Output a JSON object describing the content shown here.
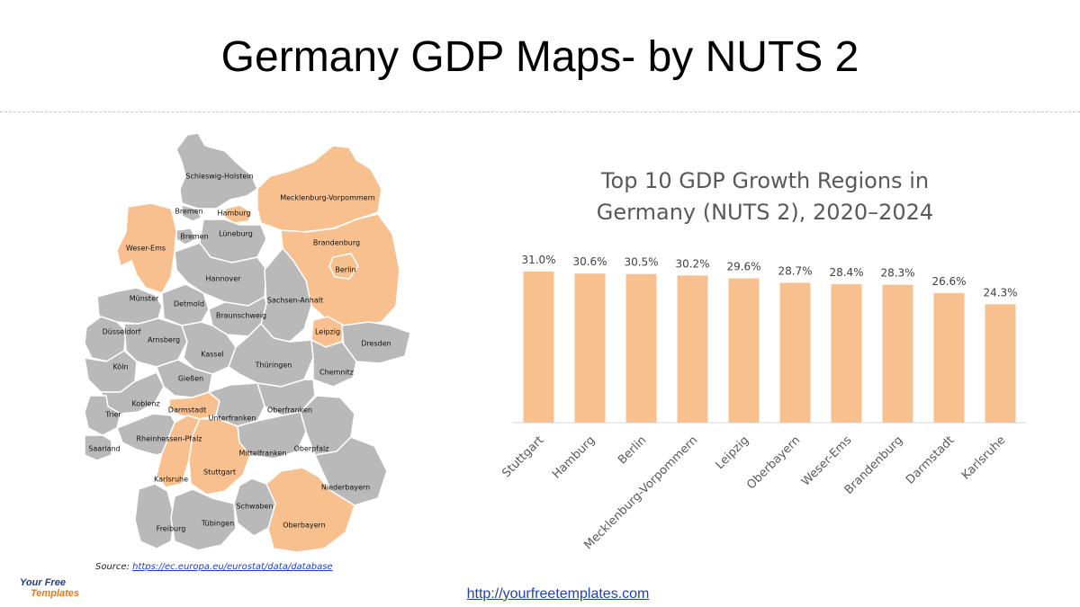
{
  "header": {
    "title": "Germany GDP Maps- by NUTS 2"
  },
  "colors": {
    "highlight": "#f9c08f",
    "base": "#b9b9b9",
    "bar": "#f9c08f",
    "border": "#ffffff"
  },
  "map": {
    "regions": [
      {
        "key": "sh",
        "name": "Schleswig-Holstein",
        "highlight": false
      },
      {
        "key": "mv",
        "name": "Mecklenburg-Vorpommern",
        "highlight": true
      },
      {
        "key": "hh",
        "name": "Hamburg",
        "highlight": true
      },
      {
        "key": "hb1",
        "name": "Bremen",
        "highlight": false
      },
      {
        "key": "hb2",
        "name": "Bremen",
        "highlight": false
      },
      {
        "key": "lu",
        "name": "Lüneburg",
        "highlight": false
      },
      {
        "key": "bb",
        "name": "Brandenburg",
        "highlight": true
      },
      {
        "key": "be",
        "name": "Berlin",
        "highlight": true
      },
      {
        "key": "we",
        "name": "Weser-Ems",
        "highlight": true
      },
      {
        "key": "ha",
        "name": "Hannover",
        "highlight": false
      },
      {
        "key": "ms",
        "name": "Münster",
        "highlight": false
      },
      {
        "key": "dt",
        "name": "Detmold",
        "highlight": false
      },
      {
        "key": "st",
        "name": "Sachsen-Anhalt",
        "highlight": false
      },
      {
        "key": "bs",
        "name": "Braunschweig",
        "highlight": false
      },
      {
        "key": "le",
        "name": "Leipzig",
        "highlight": true
      },
      {
        "key": "du",
        "name": "Düsseldorf",
        "highlight": false
      },
      {
        "key": "ar",
        "name": "Arnsberg",
        "highlight": false
      },
      {
        "key": "dd",
        "name": "Dresden",
        "highlight": false
      },
      {
        "key": "ka",
        "name": "Kassel",
        "highlight": false
      },
      {
        "key": "k",
        "name": "Köln",
        "highlight": false
      },
      {
        "key": "th",
        "name": "Thüringen",
        "highlight": false
      },
      {
        "key": "ch",
        "name": "Chemnitz",
        "highlight": false
      },
      {
        "key": "gi",
        "name": "Gießen",
        "highlight": false
      },
      {
        "key": "ko",
        "name": "Koblenz",
        "highlight": false
      },
      {
        "key": "da",
        "name": "Darmstadt",
        "highlight": true
      },
      {
        "key": "of",
        "name": "Oberfranken",
        "highlight": false
      },
      {
        "key": "tr",
        "name": "Trier",
        "highlight": false
      },
      {
        "key": "uf",
        "name": "Unterfranken",
        "highlight": false
      },
      {
        "key": "rp",
        "name": "Rheinhessen-Pfalz",
        "highlight": false
      },
      {
        "key": "sl",
        "name": "Saarland",
        "highlight": false
      },
      {
        "key": "mf",
        "name": "Mittelfranken",
        "highlight": false
      },
      {
        "key": "op",
        "name": "Oberpfalz",
        "highlight": false
      },
      {
        "key": "kr",
        "name": "Karlsruhe",
        "highlight": true
      },
      {
        "key": "sg",
        "name": "Stuttgart",
        "highlight": true
      },
      {
        "key": "nb",
        "name": "Niederbayern",
        "highlight": false
      },
      {
        "key": "sw",
        "name": "Schwaben",
        "highlight": false
      },
      {
        "key": "fr",
        "name": "Freiburg",
        "highlight": false
      },
      {
        "key": "tu",
        "name": "Tübingen",
        "highlight": false
      },
      {
        "key": "ob",
        "name": "Oberbayern",
        "highlight": true
      }
    ]
  },
  "source": {
    "label": "Source: ",
    "link": "https://ec.europa.eu/eurostat/data/database"
  },
  "logo": {
    "line1": "Your Free",
    "line2": "Templates"
  },
  "footer": {
    "url": "http://yourfreetemplates.com"
  },
  "chart_data": {
    "type": "bar",
    "title": "Top 10 GDP Growth Regions in Germany (NUTS 2), 2020–2024",
    "title_line1": "Top 10 GDP Growth Regions in",
    "title_line2": "Germany (NUTS 2), 2020–2024",
    "categories": [
      "Stuttgart",
      "Hamburg",
      "Berlin",
      "Mecklenburg-Vorpommern",
      "Leipzig",
      "Oberbayern",
      "Weser-Ems",
      "Brandenburg",
      "Darmstadt",
      "Karlsruhe"
    ],
    "values": [
      31.0,
      30.6,
      30.5,
      30.2,
      29.6,
      28.7,
      28.4,
      28.3,
      26.6,
      24.3
    ],
    "value_labels": [
      "31.0%",
      "30.6%",
      "30.5%",
      "30.2%",
      "29.6%",
      "28.7%",
      "28.4%",
      "28.3%",
      "26.6%",
      "24.3%"
    ],
    "xlabel": "",
    "ylabel": "",
    "ylim": [
      0,
      31
    ],
    "grid": false,
    "legend": "none"
  }
}
